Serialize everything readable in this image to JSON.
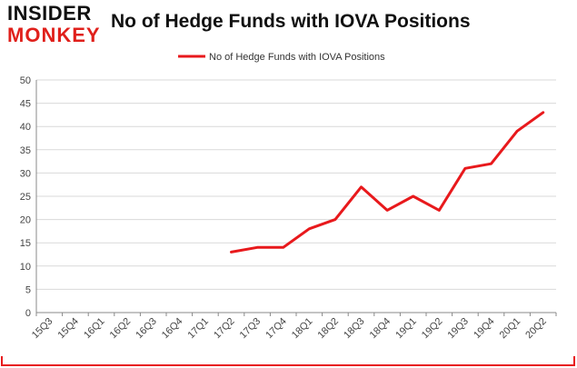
{
  "logo": {
    "top_text": "INSIDER",
    "bottom_text": "MONKEY",
    "top_color": "#111111",
    "bottom_color": "#e0201b"
  },
  "header": {
    "title": "No of Hedge Funds with IOVA Positions"
  },
  "colors": {
    "series": "#e8191c",
    "grid": "#d9d9d9",
    "axis": "#888888",
    "tick_label": "#444444",
    "frame": "#e8191c"
  },
  "chart_data": {
    "type": "line",
    "title": "No of Hedge Funds with IOVA Positions",
    "xlabel": "",
    "ylabel": "",
    "ylim": [
      0,
      50
    ],
    "yticks": [
      0,
      5,
      10,
      15,
      20,
      25,
      30,
      35,
      40,
      45,
      50
    ],
    "grid": true,
    "legend_position": "top-center",
    "categories": [
      "15Q3",
      "15Q4",
      "16Q1",
      "16Q2",
      "16Q3",
      "16Q4",
      "17Q1",
      "17Q2",
      "17Q3",
      "17Q4",
      "18Q1",
      "18Q2",
      "18Q3",
      "18Q4",
      "19Q1",
      "19Q2",
      "19Q3",
      "19Q4",
      "20Q1",
      "20Q2"
    ],
    "series": [
      {
        "name": "No of Hedge Funds with IOVA Positions",
        "values": [
          null,
          null,
          null,
          null,
          null,
          null,
          null,
          13,
          14,
          14,
          18,
          20,
          27,
          22,
          25,
          22,
          31,
          32,
          39,
          43
        ]
      }
    ]
  }
}
